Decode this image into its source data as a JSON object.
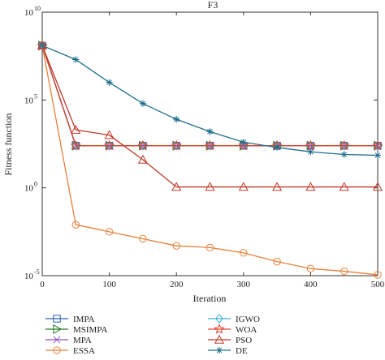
{
  "chart_data": {
    "type": "line",
    "title": "F3",
    "xlabel": "Iteration",
    "ylabel": "Fitness function",
    "yscale": "log",
    "xlim": [
      0,
      500
    ],
    "ylim_exp": [
      -5,
      10
    ],
    "x_ticks": [
      0,
      100,
      200,
      300,
      400,
      500
    ],
    "x_tick_labels": [
      "0",
      "100",
      "200",
      "300",
      "400",
      "500"
    ],
    "y_ticks_exp": [
      -5,
      0,
      5,
      10
    ],
    "y_tick_labels": [
      "10",
      "10",
      "10",
      "10"
    ],
    "y_tick_exps": [
      "-5",
      "0",
      "5",
      "10"
    ],
    "grid": false,
    "legend_position": "below",
    "series": [
      {
        "name": "IMPA",
        "color": "#2e5fb0",
        "marker": "square",
        "x": [
          0,
          50,
          100,
          150,
          200,
          250,
          300,
          350,
          400,
          450,
          500
        ],
        "log10y": [
          8.1,
          2.4,
          2.4,
          2.4,
          2.4,
          2.4,
          2.4,
          2.4,
          2.4,
          2.4,
          2.4
        ]
      },
      {
        "name": "MSIMPA",
        "color": "#2a7a2a",
        "marker": "triangle-right",
        "x": [
          0,
          50,
          100,
          150,
          200,
          250,
          300,
          350,
          400,
          450,
          500
        ],
        "log10y": [
          8.1,
          2.4,
          2.4,
          2.4,
          2.4,
          2.4,
          2.4,
          2.4,
          2.4,
          2.4,
          2.4
        ]
      },
      {
        "name": "MPA",
        "color": "#8e4fc1",
        "marker": "x",
        "x": [
          0,
          50,
          100,
          150,
          200,
          250,
          300,
          350,
          400,
          450,
          500
        ],
        "log10y": [
          8.1,
          2.4,
          2.4,
          2.4,
          2.4,
          2.4,
          2.4,
          2.4,
          2.4,
          2.4,
          2.4
        ]
      },
      {
        "name": "ESSA",
        "color": "#e8803a",
        "marker": "circle",
        "x": [
          0,
          50,
          100,
          150,
          200,
          250,
          300,
          350,
          400,
          450,
          500
        ],
        "log10y": [
          8.1,
          -2.1,
          -2.5,
          -2.9,
          -3.3,
          -3.4,
          -3.7,
          -4.2,
          -4.6,
          -4.75,
          -4.95
        ]
      },
      {
        "name": "IGWO",
        "color": "#3bb0d8",
        "marker": "diamond",
        "x": [
          0,
          50,
          100,
          150,
          200,
          250,
          300,
          350,
          400,
          450,
          500
        ],
        "log10y": [
          8.1,
          2.4,
          2.4,
          2.4,
          2.4,
          2.4,
          2.4,
          2.4,
          2.4,
          2.4,
          2.4
        ]
      },
      {
        "name": "WOA",
        "color": "#d9422b",
        "marker": "star",
        "x": [
          0,
          50,
          100,
          150,
          200,
          250,
          300,
          350,
          400,
          450,
          500
        ],
        "log10y": [
          8.1,
          2.4,
          2.4,
          2.4,
          2.4,
          2.4,
          2.4,
          2.4,
          2.4,
          2.4,
          2.4
        ]
      },
      {
        "name": "PSO",
        "color": "#c0392b",
        "marker": "triangle-up",
        "x": [
          0,
          50,
          100,
          150,
          200,
          250,
          300,
          350,
          400,
          450,
          500
        ],
        "log10y": [
          8.1,
          3.3,
          3.0,
          1.6,
          0.05,
          0.05,
          0.05,
          0.05,
          0.05,
          0.05,
          0.05
        ]
      },
      {
        "name": "DE",
        "color": "#1f6e8c",
        "marker": "asterisk",
        "x": [
          0,
          50,
          100,
          150,
          200,
          250,
          300,
          350,
          400,
          450,
          500
        ],
        "log10y": [
          8.1,
          7.3,
          6.0,
          4.8,
          3.9,
          3.2,
          2.6,
          2.3,
          2.05,
          1.9,
          1.85
        ]
      }
    ]
  }
}
